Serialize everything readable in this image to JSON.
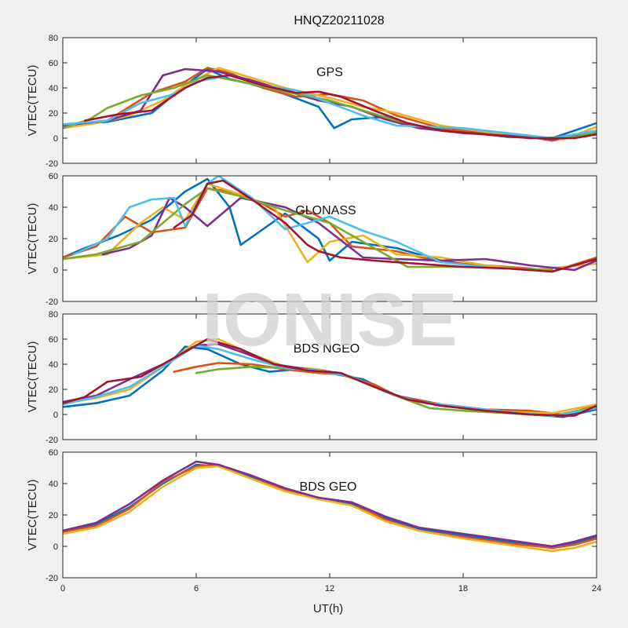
{
  "title": "HNQZ20211028",
  "xlabel": "UT(h)",
  "watermark": "IONISE",
  "x_ticks": [
    "0",
    "6",
    "12",
    "18",
    "24"
  ],
  "chart_data": [
    {
      "type": "line",
      "label": "GPS",
      "ylabel": "VTEC(TECU)",
      "xlim": [
        0,
        24
      ],
      "ylim": [
        -20,
        80
      ],
      "yticks": [
        -20,
        0,
        20,
        40,
        60,
        80
      ],
      "series": [
        {
          "color": "#0072BD",
          "x": [
            0,
            2,
            4,
            5.5,
            6.5,
            7.5,
            8.5,
            10,
            11.5,
            12.2,
            13,
            14.5,
            16,
            18,
            20,
            22,
            24
          ],
          "y": [
            10,
            13,
            20,
            42,
            55,
            47,
            43,
            35,
            25,
            8,
            15,
            17,
            9,
            5,
            1,
            0,
            12
          ]
        },
        {
          "color": "#D95319",
          "x": [
            0.2,
            2,
            3,
            4,
            5.5,
            6.5,
            7.5,
            9,
            10.5,
            12,
            13.5,
            15,
            17,
            19,
            21,
            22,
            24
          ],
          "y": [
            9,
            14,
            25,
            36,
            45,
            56,
            52,
            40,
            33,
            35,
            30,
            18,
            8,
            4,
            1,
            -2,
            5
          ]
        },
        {
          "color": "#EDB120",
          "x": [
            0,
            1.5,
            3,
            4.5,
            5.5,
            7,
            8.5,
            10,
            12,
            13.5,
            15,
            17,
            19,
            21,
            22.5,
            24
          ],
          "y": [
            8,
            12,
            18,
            30,
            42,
            56,
            48,
            40,
            32,
            25,
            20,
            10,
            5,
            1,
            -1,
            9
          ]
        },
        {
          "color": "#7E2F8E",
          "x": [
            0,
            2,
            3.5,
            4.5,
            5.5,
            7,
            8.5,
            10,
            11.5,
            13,
            14.5,
            16,
            18,
            20,
            22,
            24
          ],
          "y": [
            10,
            14,
            22,
            50,
            55,
            53,
            46,
            38,
            30,
            25,
            15,
            8,
            4,
            2,
            -1,
            4
          ]
        },
        {
          "color": "#77AC30",
          "x": [
            0,
            1.2,
            2,
            3.5,
            5,
            6.5,
            8,
            10,
            12,
            13.5,
            15,
            17,
            19,
            21,
            23,
            24
          ],
          "y": [
            8,
            15,
            24,
            34,
            40,
            50,
            45,
            37,
            30,
            22,
            14,
            6,
            3,
            0,
            1,
            5
          ]
        },
        {
          "color": "#4DBEEE",
          "x": [
            0,
            2,
            3.5,
            5,
            6,
            7.5,
            9,
            10.5,
            12,
            13.5,
            15,
            16.5,
            18,
            20,
            22,
            24
          ],
          "y": [
            11,
            14,
            28,
            35,
            45,
            50,
            42,
            38,
            28,
            18,
            10,
            9,
            8,
            4,
            0,
            6
          ]
        },
        {
          "color": "#A2142F",
          "x": [
            1,
            2.5,
            4,
            5.5,
            6.5,
            7.5,
            9,
            10.5,
            11.5,
            12.5,
            14,
            15.5,
            17,
            19,
            21,
            23,
            24
          ],
          "y": [
            14,
            19,
            22,
            40,
            48,
            50,
            42,
            36,
            37,
            33,
            22,
            12,
            6,
            3,
            0,
            0,
            3
          ]
        }
      ]
    },
    {
      "type": "line",
      "label": "GLONASS",
      "ylabel": "VTEC(TECU)",
      "xlim": [
        0,
        24
      ],
      "ylim": [
        -20,
        60
      ],
      "yticks": [
        -20,
        0,
        20,
        40,
        60
      ],
      "series": [
        {
          "color": "#0072BD",
          "x": [
            0,
            1,
            2.5,
            4,
            5.5,
            6.5,
            7.5,
            8,
            10,
            11.5,
            12,
            13,
            15,
            17,
            19,
            21,
            22
          ],
          "y": [
            8,
            14,
            22,
            32,
            50,
            58,
            40,
            16,
            36,
            20,
            6,
            18,
            14,
            6,
            2,
            0,
            1
          ]
        },
        {
          "color": "#D95319",
          "x": [
            0,
            1.5,
            2.8,
            4,
            5.5,
            6.5,
            7.5,
            9,
            10,
            11,
            12,
            13,
            15,
            17,
            19,
            21,
            22,
            24
          ],
          "y": [
            8,
            15,
            34,
            24,
            27,
            52,
            50,
            42,
            34,
            38,
            30,
            15,
            12,
            5,
            3,
            1,
            -1,
            8
          ]
        },
        {
          "color": "#EDB120",
          "x": [
            0,
            2,
            3.5,
            4.5,
            5.5,
            6.5,
            8,
            9.5,
            11,
            12,
            13.5,
            15,
            17,
            19,
            21,
            24
          ],
          "y": [
            7,
            10,
            30,
            40,
            32,
            55,
            48,
            40,
            5,
            18,
            22,
            10,
            8,
            3,
            0,
            4
          ]
        },
        {
          "color": "#7E2F8E",
          "x": [
            1.8,
            3,
            4,
            4.8,
            5.5,
            6.5,
            8,
            10,
            11.5,
            13.5,
            15,
            17,
            19,
            21,
            23,
            24
          ],
          "y": [
            10,
            14,
            22,
            46,
            40,
            28,
            46,
            40,
            30,
            8,
            7,
            6,
            7,
            3,
            0,
            6
          ]
        },
        {
          "color": "#77AC30",
          "x": [
            0,
            1.5,
            2.5,
            3.5,
            4.5,
            5.5,
            6.5,
            8,
            10,
            12,
            15.5,
            18,
            20,
            22
          ],
          "y": [
            7,
            10,
            14,
            18,
            30,
            42,
            52,
            47,
            38,
            30,
            2,
            2,
            1,
            0
          ]
        },
        {
          "color": "#4DBEEE",
          "x": [
            0.5,
            2,
            3,
            4,
            5,
            5.5,
            6.5,
            7,
            8.5,
            10,
            12,
            13.5,
            15,
            17,
            19,
            21
          ],
          "y": [
            10,
            20,
            40,
            45,
            46,
            28,
            55,
            60,
            46,
            26,
            34,
            25,
            18,
            5,
            2,
            0
          ]
        },
        {
          "color": "#A2142F",
          "x": [
            5,
            5.8,
            6.5,
            7.2,
            8.5,
            10,
            11,
            11.5,
            12.5,
            14,
            16,
            18,
            20,
            22,
            24
          ],
          "y": [
            27,
            35,
            55,
            57,
            45,
            30,
            16,
            12,
            8,
            6,
            4,
            2,
            1,
            -1,
            7
          ]
        }
      ]
    },
    {
      "type": "line",
      "label": "BDS NGEO",
      "ylabel": "VTEC(TECU)",
      "xlim": [
        0,
        24
      ],
      "ylim": [
        -20,
        80
      ],
      "yticks": [
        -20,
        0,
        20,
        40,
        60,
        80
      ],
      "series": [
        {
          "color": "#0072BD",
          "x": [
            0,
            1.5,
            3,
            4.5,
            5.5,
            6.5,
            8,
            9.3,
            10.5,
            12,
            13.5,
            15,
            17,
            19,
            21,
            22.5,
            24
          ],
          "y": [
            6,
            9,
            15,
            35,
            54,
            52,
            40,
            34,
            36,
            33,
            28,
            15,
            8,
            4,
            0,
            -2,
            4
          ]
        },
        {
          "color": "#D95319",
          "x": [
            5,
            6,
            7,
            8.5,
            10,
            11.5,
            12.5,
            14,
            15,
            17,
            19,
            21,
            22.5,
            24
          ],
          "y": [
            34,
            38,
            41,
            40,
            36,
            33,
            32,
            24,
            15,
            8,
            4,
            3,
            0,
            7
          ]
        },
        {
          "color": "#EDB120",
          "x": [
            0,
            1.5,
            3,
            4.5,
            6,
            7,
            8.5,
            10,
            11.5,
            13,
            14.5,
            16,
            18,
            20,
            22,
            24
          ],
          "y": [
            9,
            13,
            20,
            38,
            58,
            60,
            48,
            38,
            36,
            30,
            18,
            10,
            6,
            2,
            1,
            8
          ]
        },
        {
          "color": "#7E2F8E",
          "x": [
            0,
            1.5,
            3,
            4.5,
            6,
            7,
            8,
            9.5,
            11,
            12.5,
            14,
            15.5,
            17,
            19,
            21,
            22.5,
            24
          ],
          "y": [
            10,
            15,
            28,
            40,
            55,
            56,
            50,
            40,
            36,
            33,
            22,
            12,
            7,
            3,
            0,
            -1,
            6
          ]
        },
        {
          "color": "#77AC30",
          "x": [
            6,
            7,
            8.5,
            10,
            11.5,
            12.5,
            13.5,
            14.8,
            16.5,
            18,
            20,
            22,
            24
          ],
          "y": [
            33,
            36,
            38,
            37,
            34,
            32,
            26,
            16,
            5,
            3,
            1,
            -1,
            6
          ]
        },
        {
          "color": "#4DBEEE",
          "x": [
            0,
            1.5,
            3,
            4.5,
            6,
            7,
            8.5,
            10,
            11.5,
            13,
            14.5,
            16,
            18,
            20,
            22,
            24
          ],
          "y": [
            8,
            14,
            22,
            38,
            55,
            52,
            44,
            37,
            35,
            30,
            18,
            10,
            6,
            2,
            -1,
            5
          ]
        },
        {
          "color": "#A2142F",
          "x": [
            0,
            1,
            2,
            3.5,
            5,
            6.5,
            8,
            9.5,
            11,
            12.5,
            14,
            15.5,
            17,
            19,
            21,
            23,
            24
          ],
          "y": [
            9,
            14,
            26,
            30,
            45,
            60,
            52,
            40,
            35,
            33,
            22,
            12,
            7,
            3,
            0,
            -1,
            7
          ]
        }
      ]
    },
    {
      "type": "line",
      "label": "BDS GEO",
      "ylabel": "VTEC(TECU)",
      "xlim": [
        0,
        24
      ],
      "ylim": [
        -20,
        60
      ],
      "yticks": [
        -20,
        0,
        20,
        40,
        60
      ],
      "series": [
        {
          "color": "#0072BD",
          "x": [
            0,
            1.5,
            3,
            4.5,
            6,
            7,
            8.5,
            10,
            11.5,
            13,
            14.5,
            16,
            18,
            20,
            22,
            23,
            24
          ],
          "y": [
            9,
            14,
            25,
            40,
            52,
            51,
            44,
            36,
            30,
            27,
            18,
            11,
            7,
            3,
            0,
            2,
            6
          ]
        },
        {
          "color": "#D95319",
          "x": [
            0,
            1.5,
            3,
            4.5,
            6,
            7,
            8.5,
            10,
            11.5,
            13,
            14.5,
            16,
            18,
            20,
            22,
            23,
            24
          ],
          "y": [
            9,
            13,
            24,
            41,
            51,
            52,
            45,
            36,
            31,
            28,
            17,
            10,
            6,
            2,
            -1,
            1,
            5
          ]
        },
        {
          "color": "#EDB120",
          "x": [
            0,
            1.5,
            3,
            4.5,
            6,
            7,
            8.5,
            10,
            11.5,
            13,
            14.5,
            16,
            18,
            20,
            22,
            23,
            24
          ],
          "y": [
            8,
            12,
            22,
            38,
            50,
            51,
            43,
            35,
            30,
            26,
            16,
            10,
            5,
            1,
            -3,
            -1,
            3
          ]
        },
        {
          "color": "#7E2F8E",
          "x": [
            0,
            1.5,
            3,
            4.5,
            6,
            7,
            8.5,
            10,
            11.5,
            13,
            14.5,
            16,
            18,
            20,
            22,
            23,
            24
          ],
          "y": [
            10,
            15,
            27,
            42,
            54,
            52,
            45,
            37,
            31,
            28,
            19,
            12,
            8,
            4,
            0,
            3,
            7
          ]
        }
      ]
    }
  ]
}
